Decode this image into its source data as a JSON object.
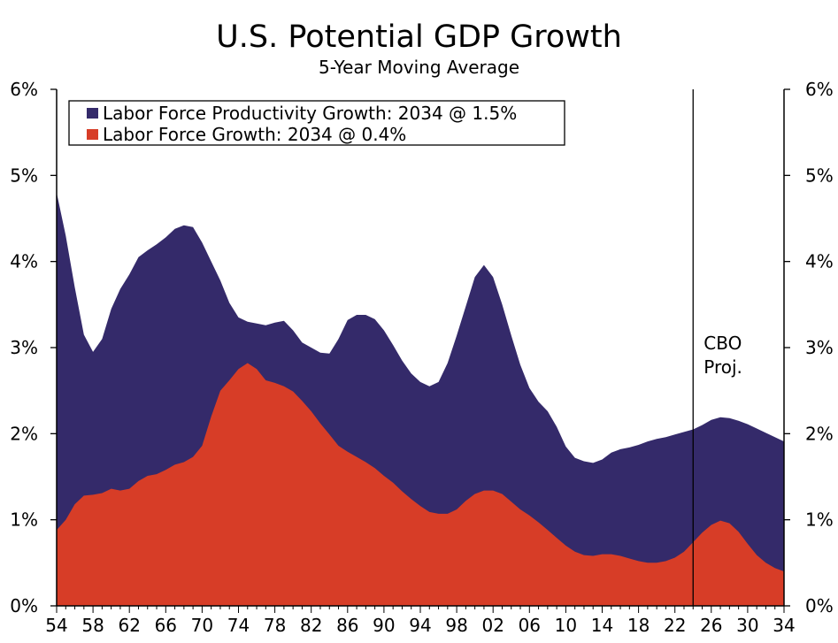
{
  "chart_data": {
    "type": "area",
    "title": "U.S. Potential GDP Growth",
    "subtitle": "5-Year Moving Average",
    "xlabel": "",
    "ylabel": "",
    "xlim": [
      1954,
      2034
    ],
    "ylim": [
      0,
      6
    ],
    "x_tick_labels": [
      "54",
      "58",
      "62",
      "66",
      "70",
      "74",
      "78",
      "82",
      "86",
      "90",
      "94",
      "98",
      "02",
      "06",
      "10",
      "14",
      "18",
      "22",
      "26",
      "30",
      "34"
    ],
    "y_tick_labels": [
      "0%",
      "1%",
      "2%",
      "3%",
      "4%",
      "5%",
      "6%"
    ],
    "legend_position": "top-left",
    "stacking": "overlapping",
    "series": [
      {
        "name": "Labor Force Productivity Growth: 2034 @ 1.5%",
        "color": "#342a6a",
        "points": [
          [
            1954,
            4.8
          ],
          [
            1955,
            4.3
          ],
          [
            1956,
            3.7
          ],
          [
            1957,
            3.15
          ],
          [
            1958,
            2.95
          ],
          [
            1959,
            3.1
          ],
          [
            1960,
            3.45
          ],
          [
            1961,
            3.68
          ],
          [
            1962,
            3.85
          ],
          [
            1963,
            4.05
          ],
          [
            1964,
            4.13
          ],
          [
            1965,
            4.2
          ],
          [
            1966,
            4.28
          ],
          [
            1967,
            4.38
          ],
          [
            1968,
            4.42
          ],
          [
            1969,
            4.4
          ],
          [
            1970,
            4.22
          ],
          [
            1971,
            4.0
          ],
          [
            1972,
            3.78
          ],
          [
            1973,
            3.52
          ],
          [
            1974,
            3.35
          ],
          [
            1975,
            3.3
          ],
          [
            1976,
            3.28
          ],
          [
            1977,
            3.26
          ],
          [
            1978,
            3.29
          ],
          [
            1979,
            3.31
          ],
          [
            1980,
            3.2
          ],
          [
            1981,
            3.06
          ],
          [
            1982,
            3.0
          ],
          [
            1983,
            2.94
          ],
          [
            1984,
            2.93
          ],
          [
            1985,
            3.1
          ],
          [
            1986,
            3.32
          ],
          [
            1987,
            3.38
          ],
          [
            1988,
            3.38
          ],
          [
            1989,
            3.33
          ],
          [
            1990,
            3.2
          ],
          [
            1991,
            3.03
          ],
          [
            1992,
            2.85
          ],
          [
            1993,
            2.7
          ],
          [
            1994,
            2.6
          ],
          [
            1995,
            2.55
          ],
          [
            1996,
            2.6
          ],
          [
            1997,
            2.82
          ],
          [
            1998,
            3.14
          ],
          [
            1999,
            3.48
          ],
          [
            2000,
            3.82
          ],
          [
            2001,
            3.96
          ],
          [
            2002,
            3.82
          ],
          [
            2003,
            3.5
          ],
          [
            2004,
            3.14
          ],
          [
            2005,
            2.8
          ],
          [
            2006,
            2.53
          ],
          [
            2007,
            2.37
          ],
          [
            2008,
            2.26
          ],
          [
            2009,
            2.08
          ],
          [
            2010,
            1.85
          ],
          [
            2011,
            1.72
          ],
          [
            2012,
            1.68
          ],
          [
            2013,
            1.66
          ],
          [
            2014,
            1.7
          ],
          [
            2015,
            1.78
          ],
          [
            2016,
            1.82
          ],
          [
            2017,
            1.84
          ],
          [
            2018,
            1.87
          ],
          [
            2019,
            1.91
          ],
          [
            2020,
            1.94
          ],
          [
            2021,
            1.96
          ],
          [
            2022,
            1.99
          ],
          [
            2023,
            2.02
          ],
          [
            2024,
            2.05
          ],
          [
            2025,
            2.1
          ],
          [
            2026,
            2.16
          ],
          [
            2027,
            2.19
          ],
          [
            2028,
            2.18
          ],
          [
            2029,
            2.15
          ],
          [
            2030,
            2.11
          ],
          [
            2031,
            2.06
          ],
          [
            2032,
            2.01
          ],
          [
            2033,
            1.96
          ],
          [
            2034,
            1.91
          ]
        ]
      },
      {
        "name": "Labor Force Growth: 2034 @ 0.4%",
        "color": "#d73d27",
        "points": [
          [
            1954,
            0.88
          ],
          [
            1955,
            1.0
          ],
          [
            1956,
            1.18
          ],
          [
            1957,
            1.28
          ],
          [
            1958,
            1.29
          ],
          [
            1959,
            1.31
          ],
          [
            1960,
            1.36
          ],
          [
            1961,
            1.34
          ],
          [
            1962,
            1.36
          ],
          [
            1963,
            1.45
          ],
          [
            1964,
            1.51
          ],
          [
            1965,
            1.53
          ],
          [
            1966,
            1.58
          ],
          [
            1967,
            1.64
          ],
          [
            1968,
            1.67
          ],
          [
            1969,
            1.73
          ],
          [
            1970,
            1.86
          ],
          [
            1971,
            2.2
          ],
          [
            1972,
            2.5
          ],
          [
            1973,
            2.62
          ],
          [
            1974,
            2.75
          ],
          [
            1975,
            2.82
          ],
          [
            1976,
            2.75
          ],
          [
            1977,
            2.62
          ],
          [
            1978,
            2.59
          ],
          [
            1979,
            2.55
          ],
          [
            1980,
            2.49
          ],
          [
            1981,
            2.38
          ],
          [
            1982,
            2.26
          ],
          [
            1983,
            2.12
          ],
          [
            1984,
            1.99
          ],
          [
            1985,
            1.86
          ],
          [
            1986,
            1.79
          ],
          [
            1987,
            1.73
          ],
          [
            1988,
            1.67
          ],
          [
            1989,
            1.6
          ],
          [
            1990,
            1.51
          ],
          [
            1991,
            1.43
          ],
          [
            1992,
            1.33
          ],
          [
            1993,
            1.24
          ],
          [
            1994,
            1.16
          ],
          [
            1995,
            1.09
          ],
          [
            1996,
            1.07
          ],
          [
            1997,
            1.07
          ],
          [
            1998,
            1.12
          ],
          [
            1999,
            1.22
          ],
          [
            2000,
            1.3
          ],
          [
            2001,
            1.34
          ],
          [
            2002,
            1.34
          ],
          [
            2003,
            1.3
          ],
          [
            2004,
            1.21
          ],
          [
            2005,
            1.12
          ],
          [
            2006,
            1.05
          ],
          [
            2007,
            0.97
          ],
          [
            2008,
            0.88
          ],
          [
            2009,
            0.79
          ],
          [
            2010,
            0.7
          ],
          [
            2011,
            0.63
          ],
          [
            2012,
            0.59
          ],
          [
            2013,
            0.58
          ],
          [
            2014,
            0.6
          ],
          [
            2015,
            0.6
          ],
          [
            2016,
            0.58
          ],
          [
            2017,
            0.55
          ],
          [
            2018,
            0.52
          ],
          [
            2019,
            0.5
          ],
          [
            2020,
            0.5
          ],
          [
            2021,
            0.52
          ],
          [
            2022,
            0.56
          ],
          [
            2023,
            0.63
          ],
          [
            2024,
            0.74
          ],
          [
            2025,
            0.85
          ],
          [
            2026,
            0.94
          ],
          [
            2027,
            0.99
          ],
          [
            2028,
            0.96
          ],
          [
            2029,
            0.86
          ],
          [
            2030,
            0.72
          ],
          [
            2031,
            0.59
          ],
          [
            2032,
            0.5
          ],
          [
            2033,
            0.44
          ],
          [
            2034,
            0.4
          ]
        ]
      }
    ],
    "reference_lines": [
      {
        "x": 2024,
        "label_lines": [
          "CBO",
          "Proj."
        ]
      }
    ]
  }
}
